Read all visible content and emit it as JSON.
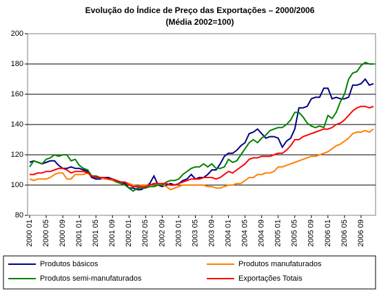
{
  "chart_data": {
    "type": "line",
    "title": "Evolução do Índice de Preço das Exportações – 2000/2006",
    "subtitle": "(Média 2002=100)",
    "categories": [
      "2000 01",
      null,
      null,
      null,
      "2000 05",
      null,
      null,
      null,
      "2000 09",
      null,
      null,
      null,
      "2001 01",
      null,
      null,
      null,
      "2001 05",
      null,
      null,
      null,
      "2001 09",
      null,
      null,
      null,
      "2002 01",
      null,
      null,
      null,
      "2002 05",
      null,
      null,
      null,
      "2002 09",
      null,
      null,
      null,
      "2003 01",
      null,
      null,
      null,
      "2003 05",
      null,
      null,
      null,
      "2003 09",
      null,
      null,
      null,
      "2004 01",
      null,
      null,
      null,
      "2004 05",
      null,
      null,
      null,
      "2004 09",
      null,
      null,
      null,
      "2005 01",
      null,
      null,
      null,
      "2005 05",
      null,
      null,
      null,
      "2005 09",
      null,
      null,
      null,
      "2006 01",
      null,
      null,
      null,
      "2006 05",
      null,
      null,
      null,
      "2006 09",
      null,
      null,
      null
    ],
    "series": [
      {
        "name": "Produtos básicos",
        "color": "#000080",
        "values": [
          115,
          116,
          115,
          114,
          115,
          116,
          116,
          113,
          111,
          111,
          112,
          111,
          111,
          110,
          109,
          105,
          104,
          104,
          105,
          105,
          104,
          103,
          102,
          101,
          98,
          98,
          97,
          97,
          99,
          101,
          106,
          100,
          99,
          100,
          101,
          100,
          101,
          103,
          104,
          107,
          104,
          105,
          105,
          107,
          110,
          110,
          114,
          119,
          121,
          121,
          123,
          126,
          128,
          134,
          135,
          137,
          134,
          131,
          132,
          132,
          131,
          125,
          129,
          131,
          137,
          151,
          151,
          152,
          157,
          158,
          158,
          164,
          164,
          157,
          158,
          157,
          157,
          158,
          166,
          166,
          167,
          170,
          166,
          167
        ]
      },
      {
        "name": "Produtos manufaturados",
        "color": "#ff8000",
        "values": [
          104,
          103,
          104,
          104,
          104,
          105,
          107,
          108,
          108,
          104,
          104,
          107,
          107,
          107,
          108,
          106,
          105,
          105,
          104,
          104,
          103,
          102,
          102,
          102,
          101,
          100,
          99,
          100,
          100,
          100,
          101,
          100,
          100,
          99,
          97,
          98,
          99,
          100,
          100,
          100,
          100,
          100,
          100,
          99,
          99,
          98,
          98,
          99,
          100,
          100,
          101,
          101,
          103,
          105,
          105,
          107,
          107,
          108,
          108,
          109,
          112,
          112,
          113,
          114,
          115,
          116,
          117,
          118,
          119,
          119,
          120,
          121,
          122,
          124,
          126,
          127,
          129,
          131,
          134,
          135,
          135,
          136,
          135,
          137
        ]
      },
      {
        "name": "Produtos semi-manufaturados",
        "color": "#008000",
        "values": [
          112,
          116,
          115,
          114,
          117,
          118,
          120,
          119,
          120,
          120,
          116,
          117,
          113,
          111,
          110,
          106,
          106,
          105,
          105,
          104,
          104,
          102,
          101,
          100,
          98,
          96,
          98,
          98,
          98,
          99,
          99,
          100,
          100,
          102,
          103,
          103,
          104,
          107,
          109,
          111,
          112,
          112,
          114,
          112,
          114,
          111,
          111,
          112,
          117,
          115,
          116,
          120,
          124,
          128,
          130,
          128,
          131,
          133,
          136,
          137,
          138,
          138,
          140,
          143,
          148,
          148,
          145,
          141,
          139,
          138,
          139,
          138,
          146,
          144,
          148,
          155,
          160,
          170,
          174,
          175,
          179,
          181,
          180,
          180
        ]
      },
      {
        "name": "Exportações Totais",
        "color": "#ff0000",
        "values": [
          107,
          107,
          108,
          108,
          109,
          109,
          110,
          111,
          111,
          110,
          108,
          109,
          109,
          109,
          108,
          106,
          105,
          105,
          105,
          104,
          104,
          103,
          102,
          102,
          100,
          99,
          99,
          99,
          99,
          100,
          101,
          101,
          101,
          101,
          100,
          100,
          101,
          102,
          103,
          104,
          104,
          104,
          105,
          105,
          105,
          104,
          105,
          107,
          109,
          108,
          110,
          112,
          114,
          117,
          118,
          118,
          119,
          119,
          119,
          120,
          121,
          121,
          123,
          126,
          130,
          130,
          132,
          133,
          134,
          135,
          136,
          137,
          137,
          138,
          140,
          141,
          143,
          146,
          149,
          151,
          152,
          152,
          151,
          152
        ]
      }
    ],
    "ylim": [
      80,
      200
    ],
    "yticks": [
      80,
      100,
      120,
      140,
      160,
      180,
      200
    ],
    "grid": true
  }
}
